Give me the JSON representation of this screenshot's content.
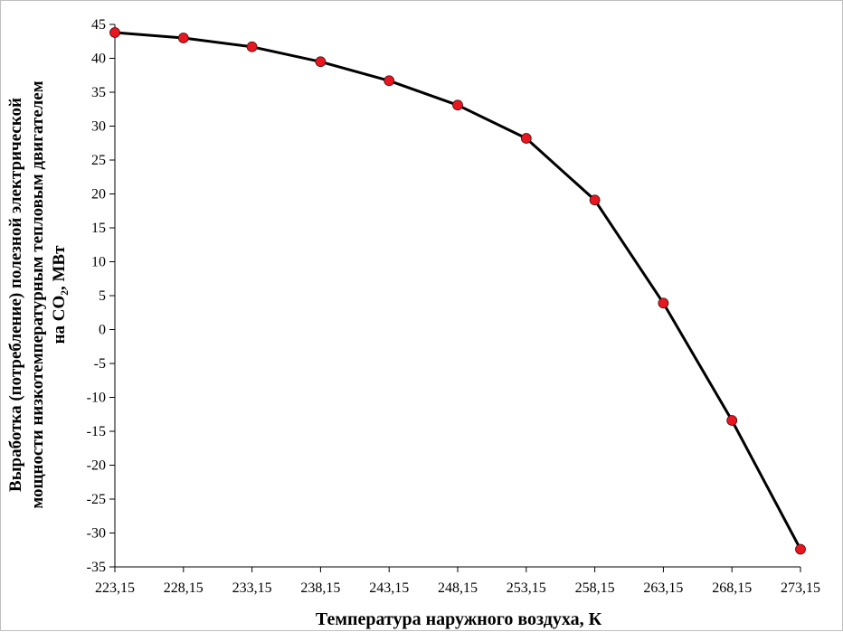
{
  "chart_data": {
    "type": "line",
    "xlabel": "Температура наружного воздуха, К",
    "ylabel_lines": [
      "Выработка (потребление) полезной электрической",
      "мощности низкотемпературным тепловым двигателем",
      "на CO₂, МВт"
    ],
    "x": [
      "223,15",
      "228,15",
      "233,15",
      "238,15",
      "243,15",
      "248,15",
      "253,15",
      "258,15",
      "263,15",
      "268,15",
      "273,15"
    ],
    "values": [
      43.8,
      43.0,
      41.7,
      39.5,
      36.7,
      33.1,
      28.2,
      19.1,
      3.9,
      -13.4,
      -32.4
    ],
    "ylim": [
      -35,
      45
    ],
    "yticks": [
      "45",
      "40",
      "35",
      "30",
      "25",
      "20",
      "15",
      "10",
      "5",
      "0",
      "-5",
      "-10",
      "-15",
      "-20",
      "-25",
      "-30",
      "-35"
    ],
    "grid": false,
    "line_color": "#000000",
    "marker_color": "#e8161f"
  }
}
